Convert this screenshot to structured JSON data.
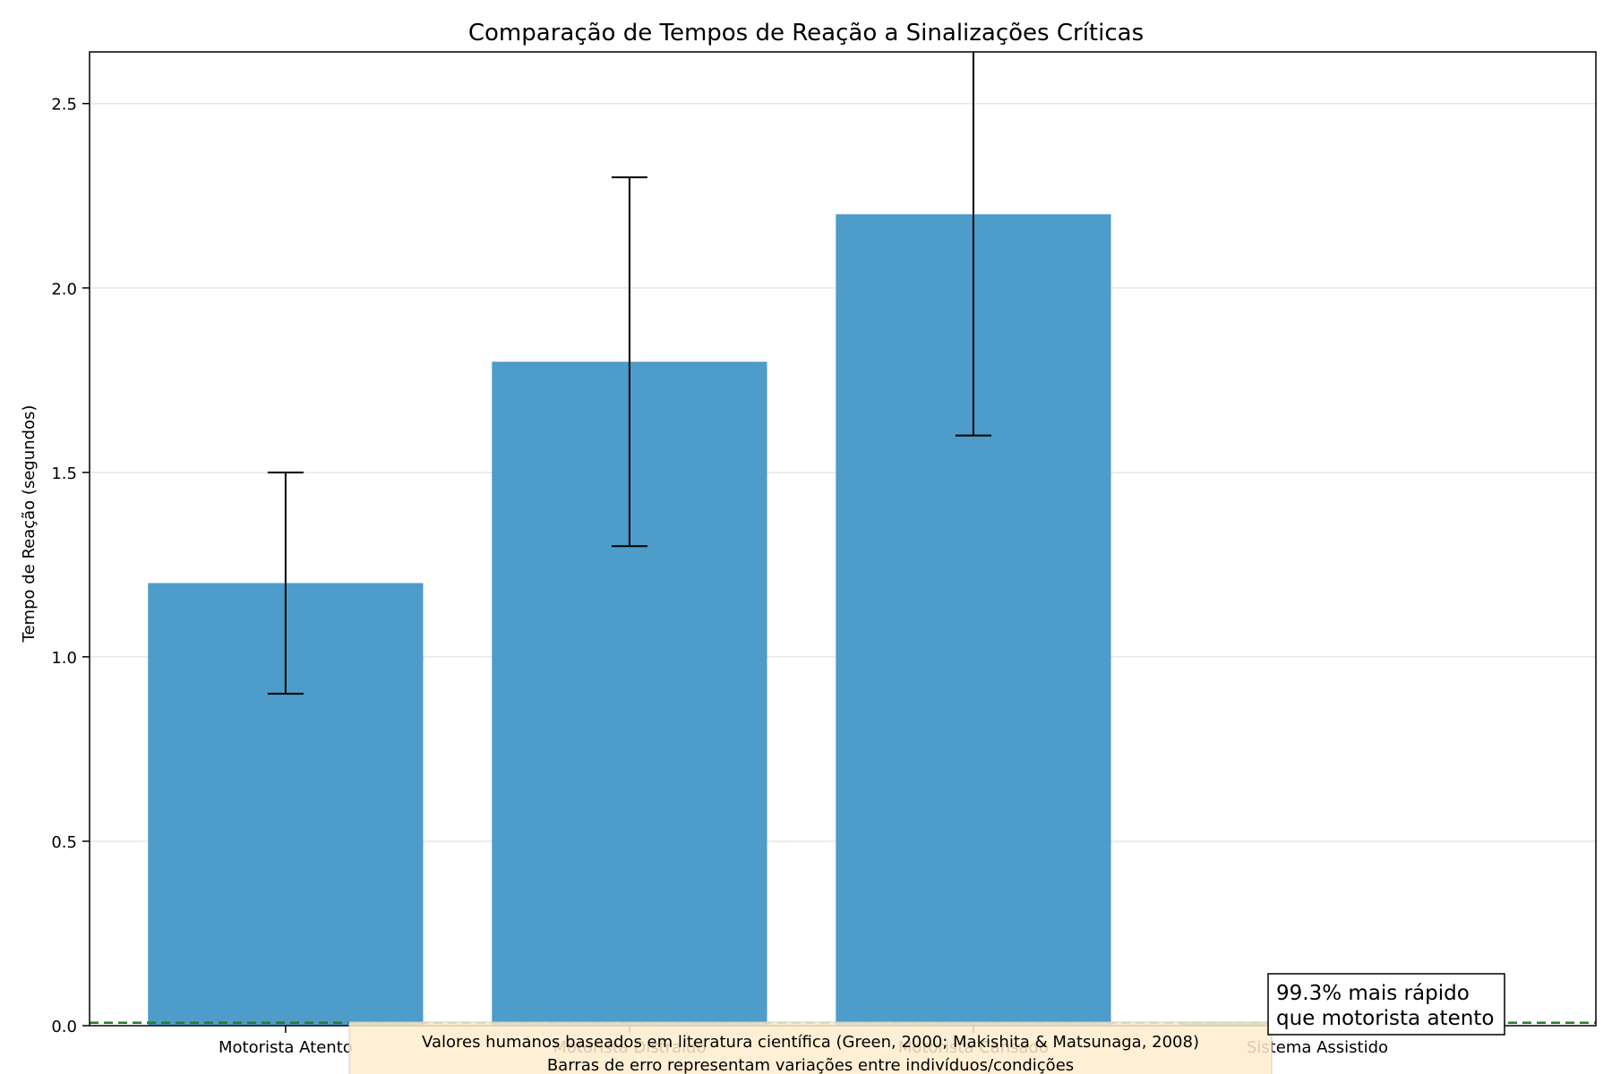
{
  "chart_data": {
    "type": "bar",
    "title": "Comparação de Tempos de Reação a Sinalizações Críticas",
    "xlabel": "",
    "ylabel": "Tempo de Reação (segundos)",
    "ylim": [
      0,
      2.64
    ],
    "yticks": [
      "0.0",
      "0.5",
      "1.0",
      "1.5",
      "2.0",
      "2.5"
    ],
    "categories": [
      "Motorista Atento",
      "Motorista Distraído",
      "Motorista Cansado",
      "Sistema Assistido"
    ],
    "values": [
      1.2,
      1.8,
      2.2,
      0.008
    ],
    "errors": [
      0.3,
      0.5,
      0.6,
      0.06
    ],
    "bar_color": "#4e9cc9",
    "reference_line": {
      "value": 0.008,
      "color": "#2a7a2a",
      "style": "dashed"
    },
    "grid": "horizontal",
    "annotation": "99.3% mais rápido\nque motorista atento",
    "footnote": "Valores humanos baseados em literatura científica (Green, 2000; Makishita & Matsunaga, 2008)\nBarras de erro representam variações entre indivíduos/condições",
    "footnote_color": "#ffeccc"
  }
}
